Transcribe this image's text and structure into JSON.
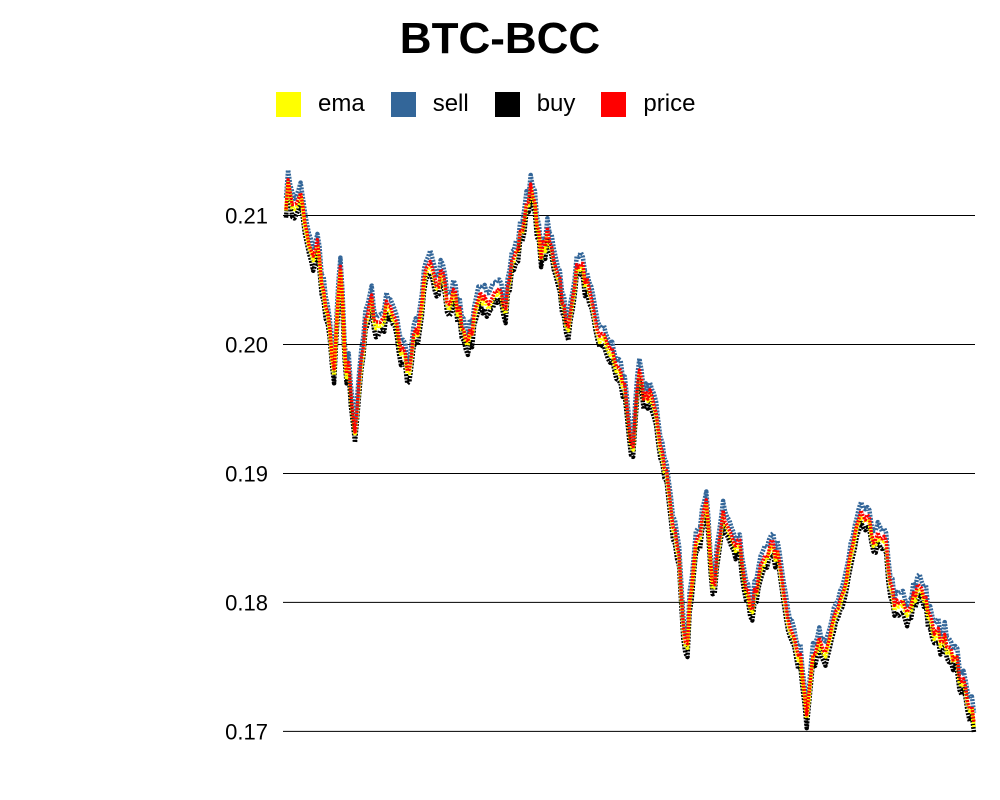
{
  "chart_data": {
    "type": "line",
    "title": "BTC-BCC",
    "xlabel": "",
    "ylabel": "",
    "ylim": [
      0.1698,
      0.2143
    ],
    "yticks": [
      0.17,
      0.18,
      0.19,
      0.2,
      0.21
    ],
    "ytick_labels": [
      "0.17",
      "0.18",
      "0.19",
      "0.20",
      "0.21"
    ],
    "grid": true,
    "legend_position": "top",
    "colors": {
      "ema": "#ffff00",
      "sell": "#336699",
      "buy": "#000000",
      "price": "#ff0000"
    },
    "price_anchors": [
      [
        0,
        0.2112
      ],
      [
        1,
        0.2126
      ],
      [
        3,
        0.2104
      ],
      [
        5,
        0.2118
      ],
      [
        7,
        0.2088
      ],
      [
        9,
        0.2068
      ],
      [
        11,
        0.2078
      ],
      [
        13,
        0.2045
      ],
      [
        15,
        0.2015
      ],
      [
        16,
        0.2
      ],
      [
        17,
        0.1978
      ],
      [
        19,
        0.2063
      ],
      [
        20,
        0.203
      ],
      [
        21,
        0.1965
      ],
      [
        22,
        0.199
      ],
      [
        24,
        0.1928
      ],
      [
        26,
        0.198
      ],
      [
        28,
        0.2015
      ],
      [
        30,
        0.2035
      ],
      [
        32,
        0.2015
      ],
      [
        34,
        0.202
      ],
      [
        36,
        0.2035
      ],
      [
        38,
        0.2022
      ],
      [
        40,
        0.2
      ],
      [
        42,
        0.1995
      ],
      [
        43,
        0.1975
      ],
      [
        45,
        0.201
      ],
      [
        47,
        0.2015
      ],
      [
        49,
        0.2055
      ],
      [
        51,
        0.2065
      ],
      [
        53,
        0.204
      ],
      [
        55,
        0.206
      ],
      [
        57,
        0.203
      ],
      [
        59,
        0.204
      ],
      [
        61,
        0.2025
      ],
      [
        63,
        0.201
      ],
      [
        65,
        0.2005
      ],
      [
        67,
        0.2035
      ],
      [
        69,
        0.204
      ],
      [
        71,
        0.2025
      ],
      [
        73,
        0.2035
      ],
      [
        75,
        0.205
      ],
      [
        77,
        0.203
      ],
      [
        79,
        0.206
      ],
      [
        81,
        0.2072
      ],
      [
        83,
        0.209
      ],
      [
        85,
        0.211
      ],
      [
        86,
        0.2125
      ],
      [
        87,
        0.212
      ],
      [
        88,
        0.2095
      ],
      [
        90,
        0.207
      ],
      [
        92,
        0.2085
      ],
      [
        94,
        0.207
      ],
      [
        96,
        0.2055
      ],
      [
        98,
        0.2025
      ],
      [
        99,
        0.2005
      ],
      [
        101,
        0.2045
      ],
      [
        103,
        0.2065
      ],
      [
        105,
        0.2055
      ],
      [
        107,
        0.2035
      ],
      [
        109,
        0.2015
      ],
      [
        111,
        0.2005
      ],
      [
        113,
        0.2003
      ],
      [
        115,
        0.199
      ],
      [
        117,
        0.198
      ],
      [
        119,
        0.1968
      ],
      [
        121,
        0.1935
      ],
      [
        122,
        0.1912
      ],
      [
        124,
        0.198
      ],
      [
        126,
        0.196
      ],
      [
        128,
        0.1965
      ],
      [
        130,
        0.1945
      ],
      [
        132,
        0.192
      ],
      [
        134,
        0.19
      ],
      [
        136,
        0.186
      ],
      [
        138,
        0.1842
      ],
      [
        139,
        0.1815
      ],
      [
        140,
        0.1775
      ],
      [
        141,
        0.1762
      ],
      [
        142,
        0.18
      ],
      [
        144,
        0.1845
      ],
      [
        146,
        0.186
      ],
      [
        148,
        0.1875
      ],
      [
        150,
        0.1808
      ],
      [
        152,
        0.184
      ],
      [
        154,
        0.187
      ],
      [
        156,
        0.186
      ],
      [
        158,
        0.185
      ],
      [
        160,
        0.184
      ],
      [
        162,
        0.181
      ],
      [
        164,
        0.1795
      ],
      [
        166,
        0.1815
      ],
      [
        168,
        0.1835
      ],
      [
        170,
        0.1845
      ],
      [
        172,
        0.184
      ],
      [
        174,
        0.183
      ],
      [
        176,
        0.1795
      ],
      [
        178,
        0.178
      ],
      [
        180,
        0.176
      ],
      [
        182,
        0.1745
      ],
      [
        183,
        0.1712
      ],
      [
        185,
        0.176
      ],
      [
        187,
        0.177
      ],
      [
        189,
        0.176
      ],
      [
        191,
        0.1765
      ],
      [
        193,
        0.179
      ],
      [
        195,
        0.1803
      ],
      [
        197,
        0.1815
      ],
      [
        199,
        0.184
      ],
      [
        201,
        0.1858
      ],
      [
        203,
        0.1868
      ],
      [
        205,
        0.186
      ],
      [
        207,
        0.185
      ],
      [
        209,
        0.1848
      ],
      [
        211,
        0.1845
      ],
      [
        213,
        0.181
      ],
      [
        215,
        0.1795
      ],
      [
        217,
        0.18
      ],
      [
        219,
        0.179
      ],
      [
        221,
        0.1805
      ],
      [
        223,
        0.1815
      ],
      [
        225,
        0.1805
      ],
      [
        227,
        0.178
      ],
      [
        229,
        0.1775
      ],
      [
        231,
        0.1772
      ],
      [
        233,
        0.177
      ],
      [
        235,
        0.176
      ],
      [
        237,
        0.1745
      ],
      [
        239,
        0.1732
      ],
      [
        241,
        0.172
      ],
      [
        242,
        0.1712
      ]
    ],
    "band_offsets": {
      "sell_above_price": 0.0007,
      "buy_below_price": 0.0009,
      "ema_below_price": 0.0003
    }
  }
}
